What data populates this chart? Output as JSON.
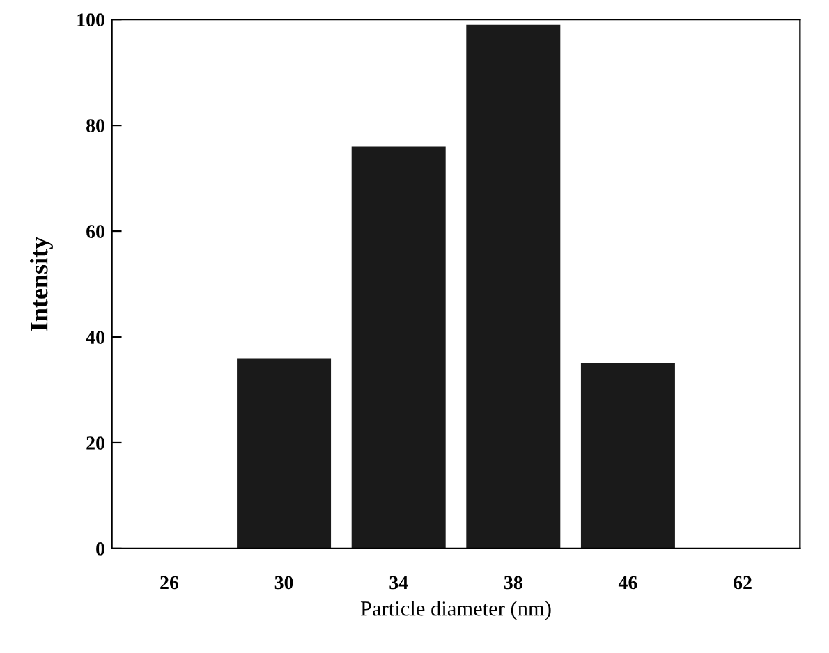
{
  "chart_data": {
    "type": "bar",
    "xlabel": "Particle diameter (nm)",
    "ylabel": "Intensity",
    "categories": [
      "26",
      "30",
      "34",
      "38",
      "46",
      "62"
    ],
    "values": [
      null,
      36,
      76,
      99,
      35,
      null
    ],
    "color": "#1a1a1a",
    "ylim": [
      0,
      100
    ],
    "yticks": [
      0,
      20,
      40,
      60,
      80,
      100
    ],
    "grid": false
  }
}
